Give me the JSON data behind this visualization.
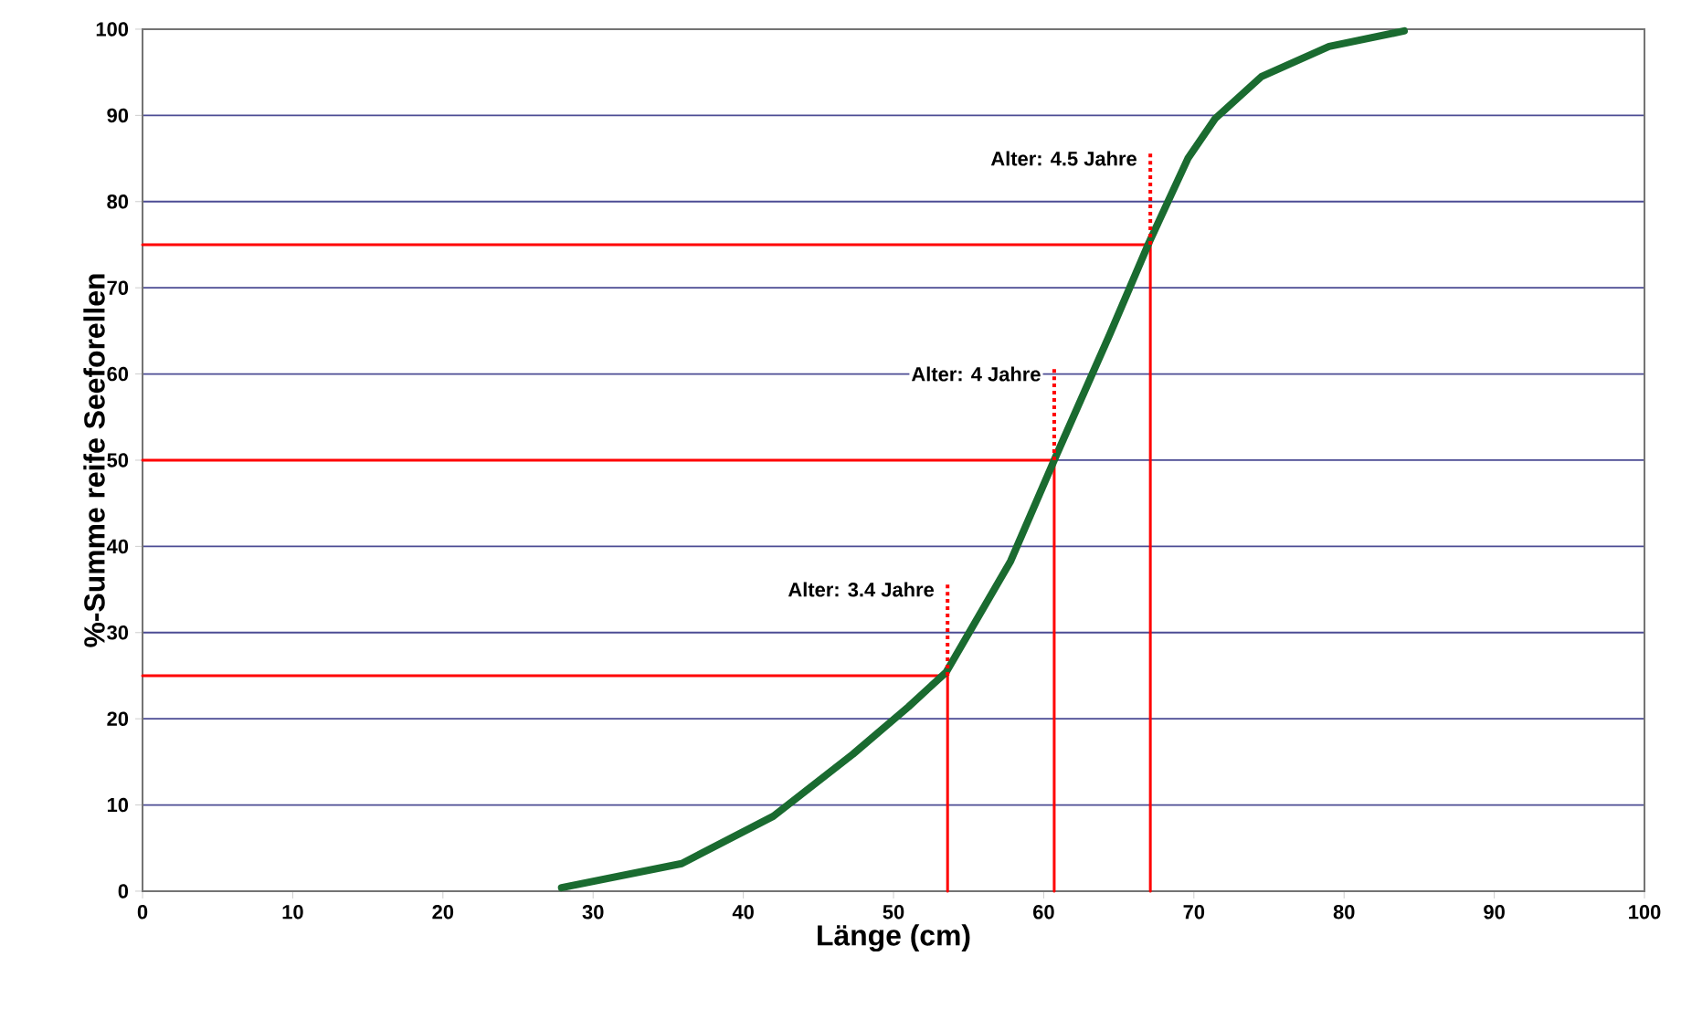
{
  "chart_data": {
    "type": "line",
    "xlabel": "Länge (cm)",
    "ylabel": "%-Summe reife Seeforellen",
    "xlim": [
      0,
      100
    ],
    "ylim": [
      0,
      100
    ],
    "xticks": [
      0,
      10,
      20,
      30,
      40,
      50,
      60,
      70,
      80,
      90,
      100
    ],
    "yticks": [
      0,
      10,
      20,
      30,
      40,
      50,
      60,
      70,
      80,
      90,
      100
    ],
    "grid": "y",
    "marker": "none",
    "line_style": "solid",
    "series": [
      {
        "color": "#1a6b30",
        "x": [
          27.9,
          35.9,
          42,
          47.3,
          51,
          53.5,
          57.8,
          60.8,
          64.4,
          67,
          69.6,
          71.4,
          74.5,
          79,
          84
        ],
        "values": [
          0.4,
          3.2,
          8.7,
          15.9,
          21.4,
          25.4,
          38.3,
          50.4,
          64.6,
          75.2,
          85,
          89.6,
          94.5,
          98,
          99.8
        ]
      },
      {
        "color": "#ff0000",
        "x": [
          0,
          53.6,
          53.6
        ],
        "values": [
          25,
          25,
          0
        ]
      },
      {
        "color": "#ff0000",
        "x": [
          0,
          60.7,
          60.7
        ],
        "values": [
          50,
          50,
          0
        ]
      },
      {
        "color": "#ff0000",
        "x": [
          0,
          67.1,
          67.1
        ],
        "values": [
          75,
          75,
          0
        ]
      }
    ],
    "annotations": [
      {
        "text": "Alter: 3.4 Jahre",
        "x": 53.6,
        "y": 25
      },
      {
        "text": "Alter: 4 Jahre",
        "x": 60.7,
        "y": 50
      },
      {
        "text": "Alter: 4.5 Jahre",
        "x": 67.1,
        "y": 75
      }
    ]
  }
}
